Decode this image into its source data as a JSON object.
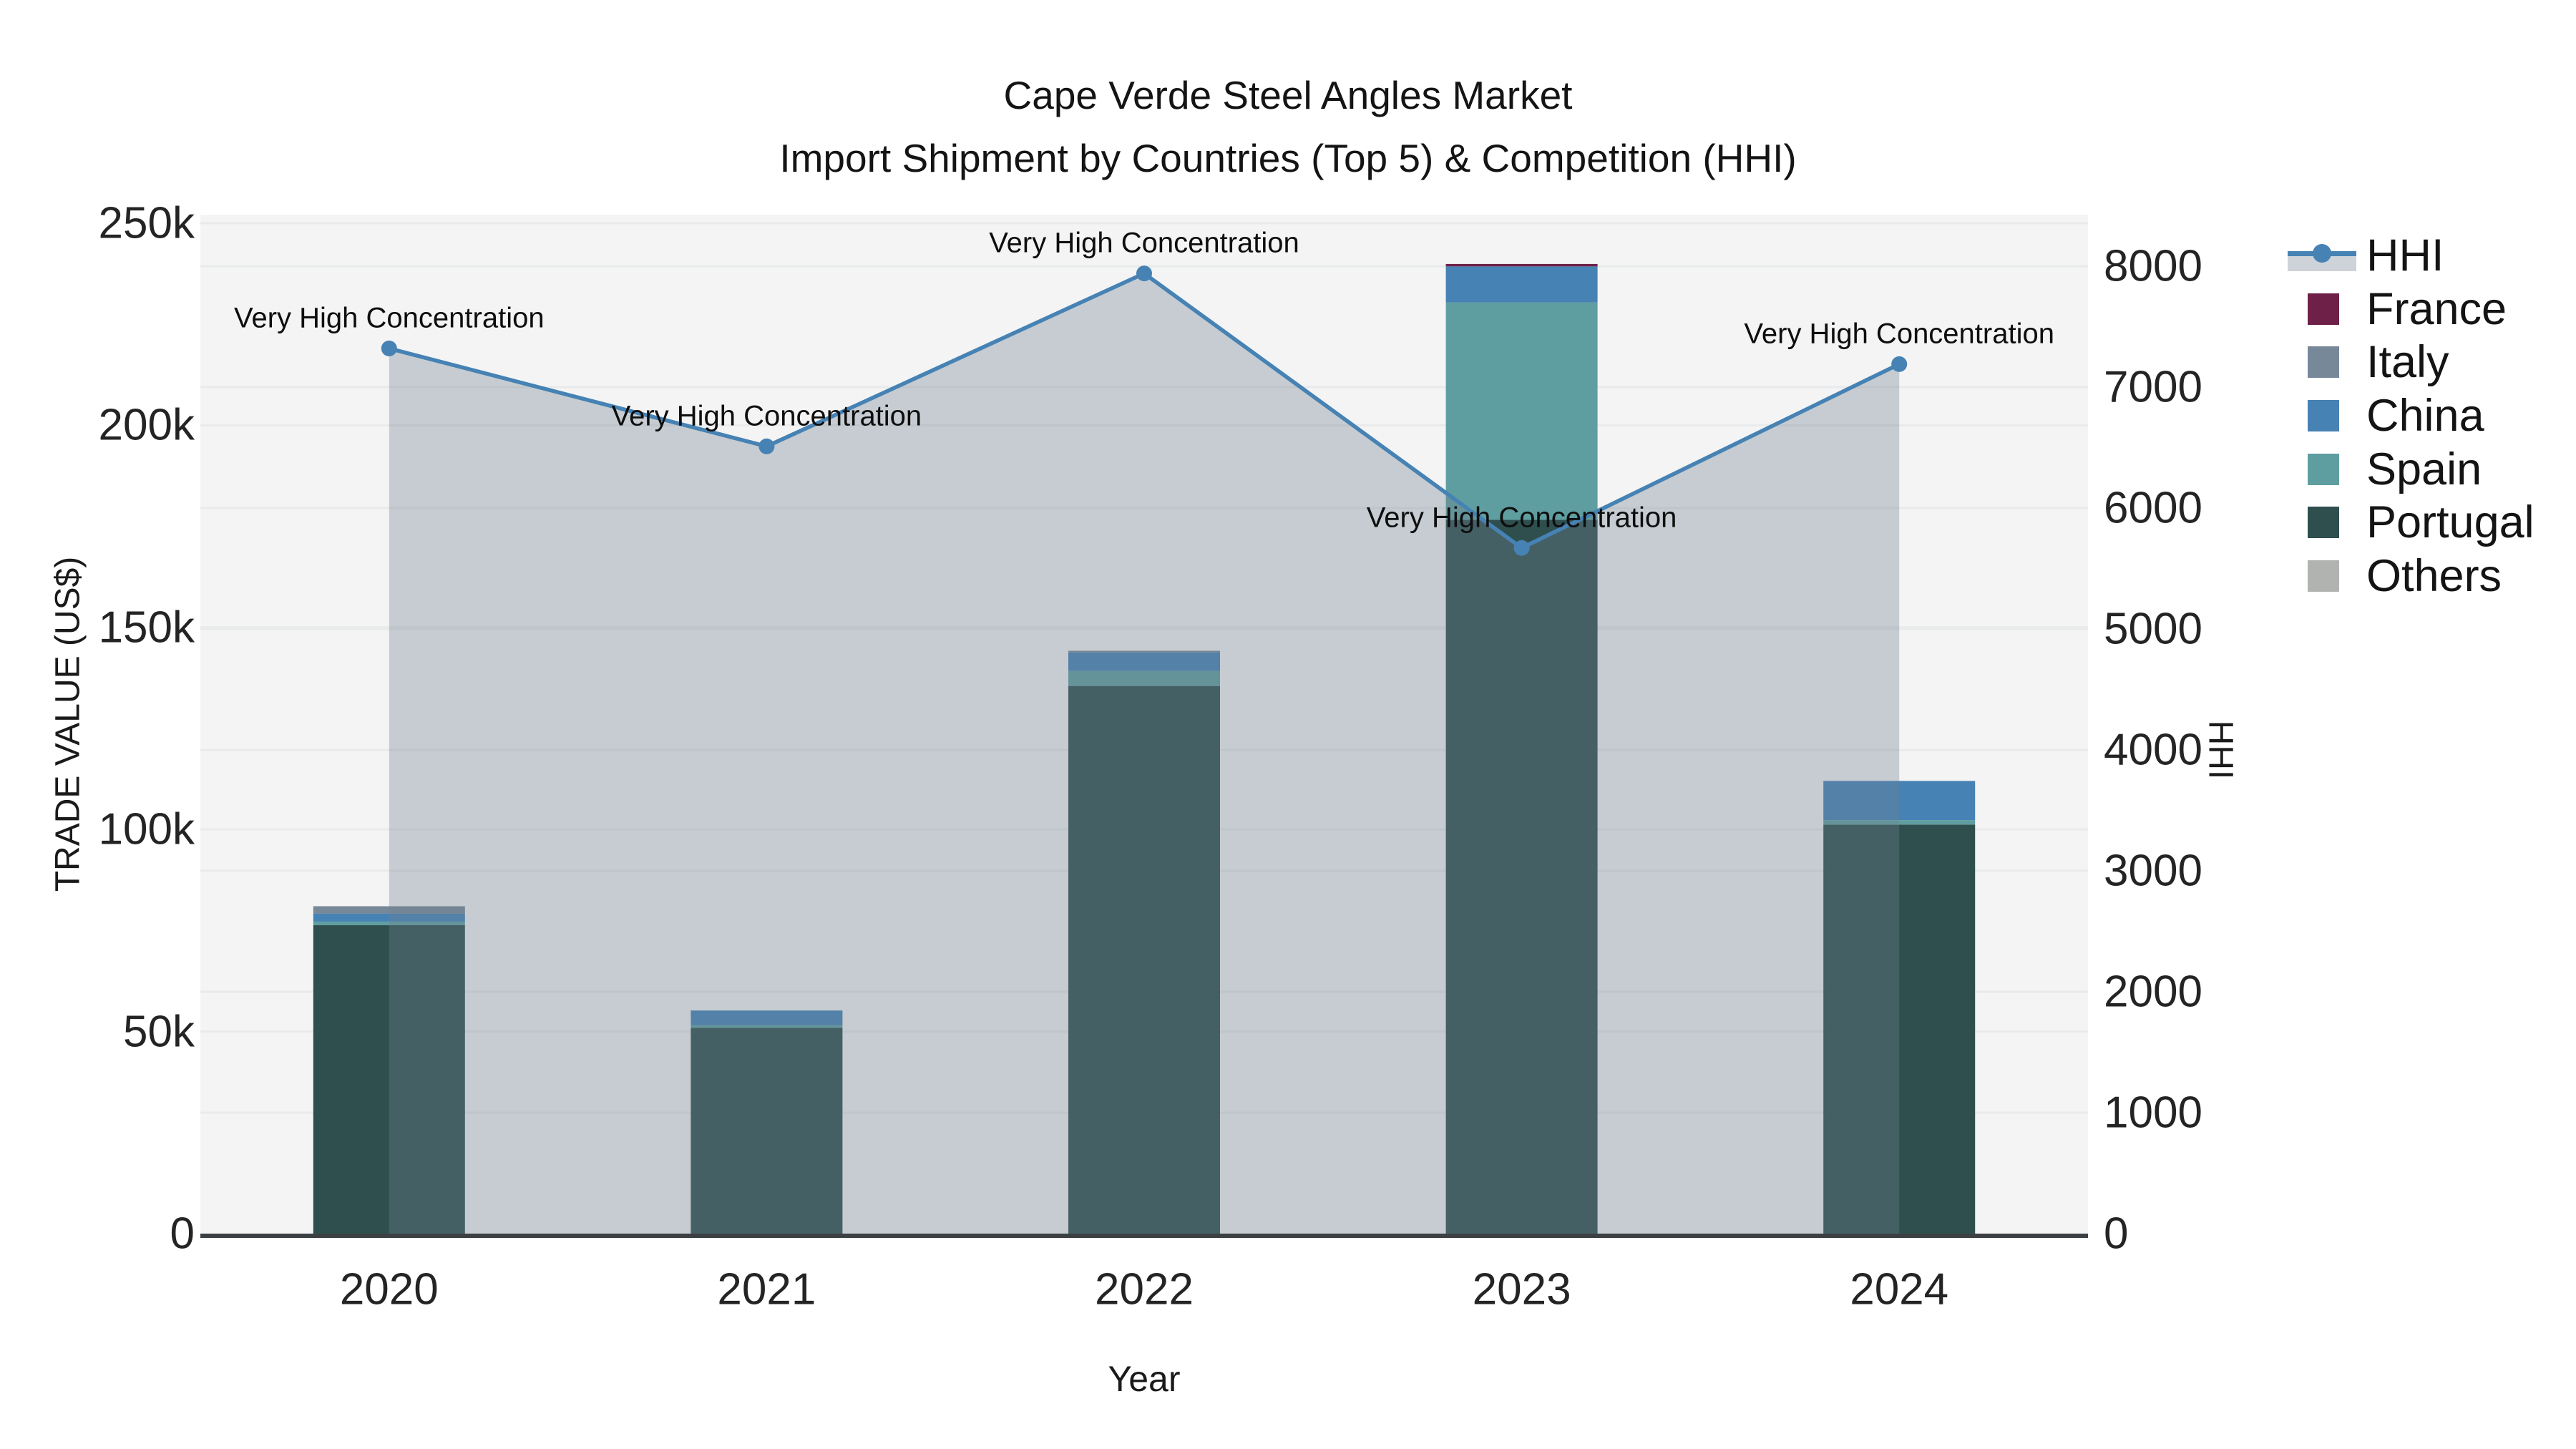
{
  "title": {
    "line1": "Cape Verde Steel Angles Market",
    "line2": "Import Shipment by Countries (Top 5) & Competition (HHI)"
  },
  "colors": {
    "plot_bg": "#f4f4f4",
    "grid": "#e9eaec",
    "axis_line": "#3c4043",
    "hhi_line": "#4682b4",
    "hhi_fill": "rgba(112,128,144,0.35)"
  },
  "legend": {
    "items": [
      {
        "label": "HHI",
        "type": "line",
        "color": "#4682b4",
        "fill": "rgba(112,128,144,0.35)"
      },
      {
        "label": "France",
        "type": "swatch",
        "color": "#6e2048"
      },
      {
        "label": "Italy",
        "type": "swatch",
        "color": "#778899"
      },
      {
        "label": "China",
        "type": "swatch",
        "color": "#4682b4"
      },
      {
        "label": "Spain",
        "type": "swatch",
        "color": "#5f9ea0"
      },
      {
        "label": "Portugal",
        "type": "swatch",
        "color": "#2f4f4f"
      },
      {
        "label": "Others",
        "type": "swatch",
        "color": "#b0b3b0"
      }
    ]
  },
  "chart_data": {
    "type": "bar",
    "subtype": "stacked-bars-with-secondary-axis-line",
    "categories": [
      "2020",
      "2021",
      "2022",
      "2023",
      "2024"
    ],
    "bar_series": [
      {
        "name": "Others",
        "color": "#b0b3b0",
        "values": [
          0,
          0,
          0,
          0,
          0
        ]
      },
      {
        "name": "Portugal",
        "color": "#2f4f4f",
        "values": [
          76300,
          50900,
          135500,
          176600,
          101200
        ]
      },
      {
        "name": "Spain",
        "color": "#5f9ea0",
        "values": [
          900,
          700,
          3700,
          53800,
          1100
        ]
      },
      {
        "name": "China",
        "color": "#4682b4",
        "values": [
          2000,
          3600,
          4600,
          8900,
          9700
        ]
      },
      {
        "name": "Italy",
        "color": "#778899",
        "values": [
          1800,
          0,
          400,
          0,
          0
        ]
      },
      {
        "name": "France",
        "color": "#6e2048",
        "values": [
          0,
          0,
          0,
          600,
          0
        ]
      }
    ],
    "bar_totals": [
      81000,
      55200,
      144200,
      239900,
      112000
    ],
    "line_series": {
      "name": "HHI",
      "axis": "right",
      "color": "#4682b4",
      "fill": "rgba(112,128,144,0.35)",
      "values": [
        7320,
        6510,
        7940,
        5670,
        7190
      ]
    },
    "annotations": [
      "Very High Concentration",
      "Very High Concentration",
      "Very High Concentration",
      "Very High Concentration",
      "Very High Concentration"
    ],
    "x": {
      "title": "Year"
    },
    "y_left": {
      "title": "TRADE VALUE (US$)",
      "range": [
        0,
        252100
      ],
      "ticks": [
        {
          "value": 0,
          "label": "0"
        },
        {
          "value": 50000,
          "label": "50k"
        },
        {
          "value": 100000,
          "label": "100k"
        },
        {
          "value": 150000,
          "label": "150k"
        },
        {
          "value": 200000,
          "label": "200k"
        },
        {
          "value": 250000,
          "label": "250k"
        }
      ]
    },
    "y_right": {
      "title": "HHI",
      "range": [
        0,
        8426
      ],
      "ticks": [
        {
          "value": 0,
          "label": "0"
        },
        {
          "value": 1000,
          "label": "1000"
        },
        {
          "value": 2000,
          "label": "2000"
        },
        {
          "value": 3000,
          "label": "3000"
        },
        {
          "value": 4000,
          "label": "4000"
        },
        {
          "value": 5000,
          "label": "5000"
        },
        {
          "value": 6000,
          "label": "6000"
        },
        {
          "value": 7000,
          "label": "7000"
        },
        {
          "value": 8000,
          "label": "8000"
        }
      ]
    },
    "grid": true,
    "legend_position": "right"
  }
}
